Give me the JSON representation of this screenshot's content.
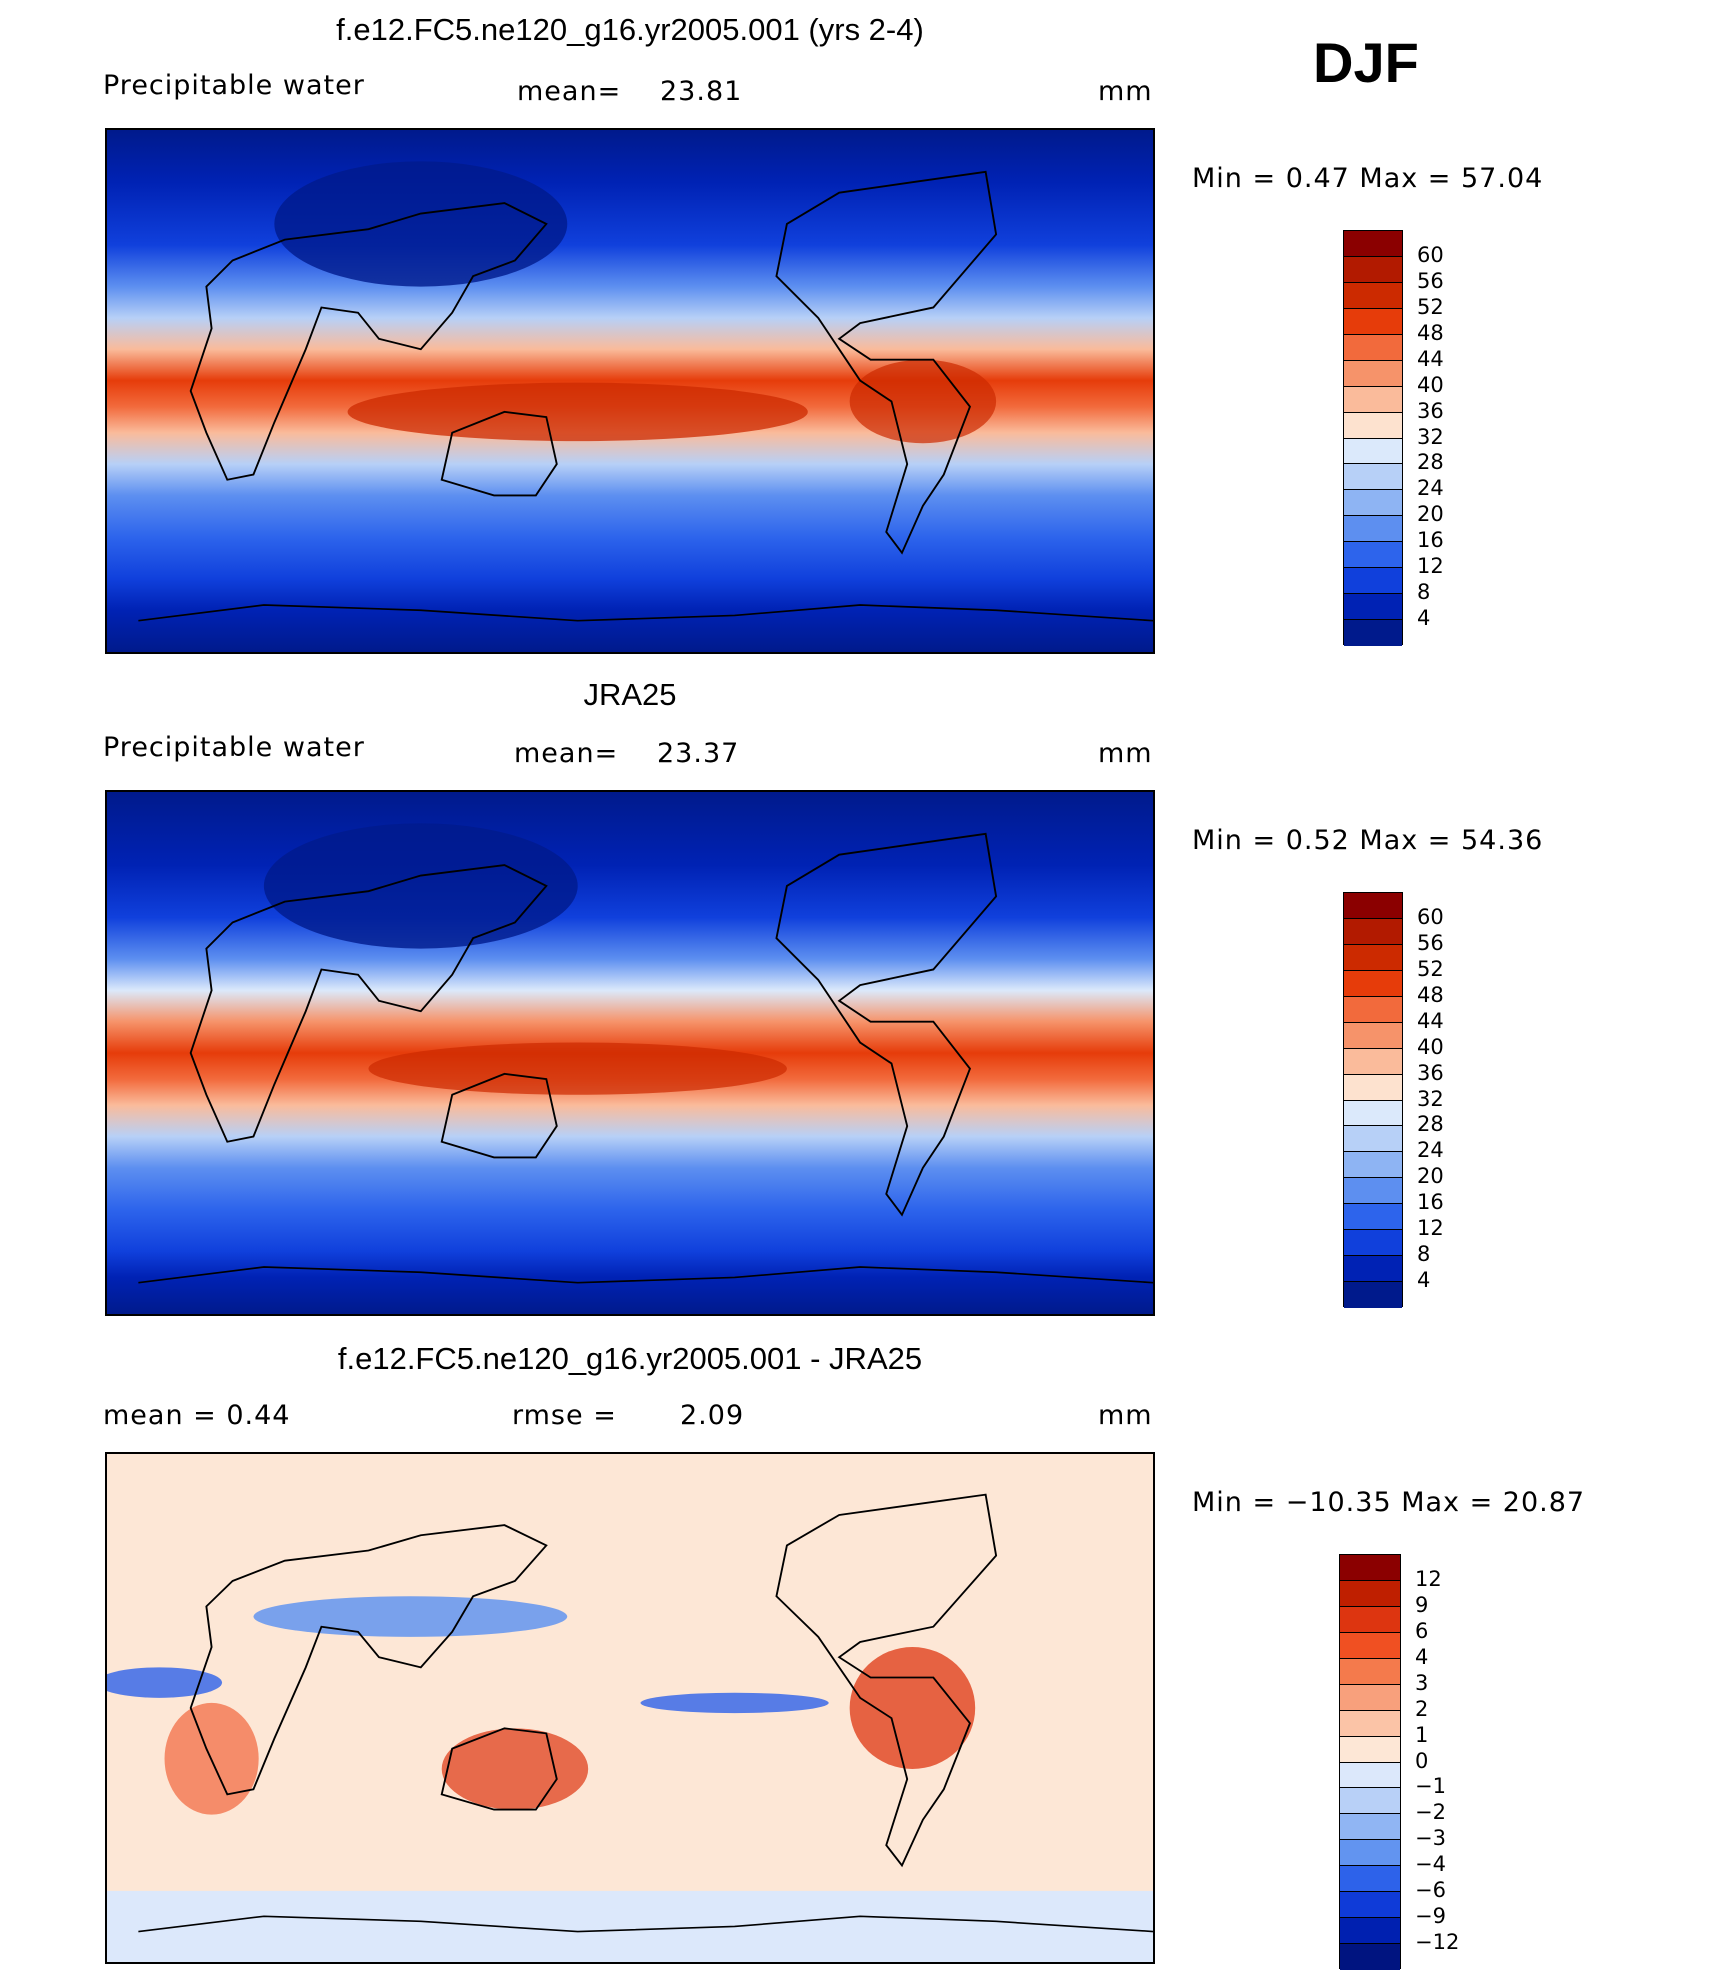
{
  "season": "DJF",
  "panels": [
    {
      "title": "f.e12.FC5.ne120_g16.yr2005.001 (yrs 2-4)",
      "left_label": "Precipitable  water",
      "mid_label": "mean=",
      "mid_value": "23.81",
      "units": "mm",
      "minmax_label": "Min  =      0.47  Max  =    57.04",
      "min": 0.47,
      "max": 57.04
    },
    {
      "title": "JRA25",
      "left_label": "Precipitable  water",
      "mid_label": "mean=",
      "mid_value": "23.37",
      "units": "mm",
      "minmax_label": "Min  =      0.52  Max  =    54.36",
      "min": 0.52,
      "max": 54.36
    },
    {
      "title": "f.e12.FC5.ne120_g16.yr2005.001 - JRA25",
      "left_label": "mean  =      0.44",
      "mid_label": "rmse  =",
      "mid_value": "2.09",
      "units": "mm",
      "minmax_label": "Min  =  −10.35  Max  =    20.87",
      "min": -10.35,
      "max": 20.87
    }
  ],
  "colorbars": [
    {
      "levels": [
        "60",
        "56",
        "52",
        "48",
        "44",
        "40",
        "36",
        "32",
        "28",
        "24",
        "20",
        "16",
        "12",
        "8",
        "4"
      ],
      "colors": [
        "#8b0000",
        "#b21a00",
        "#cc2a00",
        "#e63c0a",
        "#f26a3c",
        "#f6936a",
        "#fabb9b",
        "#fde2cf",
        "#dbe9fb",
        "#b7d0f7",
        "#8eb4f3",
        "#5d8ff0",
        "#2d64ec",
        "#1040dc",
        "#0022b4",
        "#001a8c"
      ]
    },
    {
      "levels": [
        "60",
        "56",
        "52",
        "48",
        "44",
        "40",
        "36",
        "32",
        "28",
        "24",
        "20",
        "16",
        "12",
        "8",
        "4"
      ],
      "colors": [
        "#8b0000",
        "#b21a00",
        "#cc2a00",
        "#e63c0a",
        "#f26a3c",
        "#f6936a",
        "#fabb9b",
        "#fde2cf",
        "#dbe9fb",
        "#b7d0f7",
        "#8eb4f3",
        "#5d8ff0",
        "#2d64ec",
        "#1040dc",
        "#0022b4",
        "#001a8c"
      ]
    },
    {
      "levels": [
        "12",
        "9",
        "6",
        "4",
        "3",
        "2",
        "1",
        "0",
        "−1",
        "−2",
        "−3",
        "−4",
        "−6",
        "−9",
        "−12"
      ],
      "colors": [
        "#8b0000",
        "#bf1f00",
        "#dd3510",
        "#f05022",
        "#f47a4c",
        "#f8a07c",
        "#fbc4a7",
        "#fde7d6",
        "#dce8fb",
        "#b8d0f7",
        "#90b5f3",
        "#6294f0",
        "#2d62ea",
        "#0f3bd8",
        "#0020b0",
        "#001480"
      ]
    }
  ],
  "chart_data": [
    {
      "type": "heatmap",
      "title": "f.e12.FC5.ne120_g16.yr2005.001 (yrs 2-4)",
      "variable": "Precipitable  water",
      "units": "mm",
      "mean": 23.81,
      "min": 0.47,
      "max": 57.04,
      "contour_levels": [
        4,
        8,
        12,
        16,
        20,
        24,
        28,
        32,
        36,
        40,
        44,
        48,
        52,
        56,
        60
      ]
    },
    {
      "type": "heatmap",
      "title": "JRA25",
      "variable": "Precipitable  water",
      "units": "mm",
      "mean": 23.37,
      "min": 0.52,
      "max": 54.36,
      "contour_levels": [
        4,
        8,
        12,
        16,
        20,
        24,
        28,
        32,
        36,
        40,
        44,
        48,
        52,
        56,
        60
      ]
    },
    {
      "type": "heatmap",
      "title": "f.e12.FC5.ne120_g16.yr2005.001 - JRA25",
      "units": "mm",
      "mean": 0.44,
      "rmse": 2.09,
      "min": -10.35,
      "max": 20.87,
      "contour_levels": [
        -12,
        -9,
        -6,
        -4,
        -3,
        -2,
        -1,
        0,
        1,
        2,
        3,
        4,
        6,
        9,
        12
      ]
    }
  ]
}
